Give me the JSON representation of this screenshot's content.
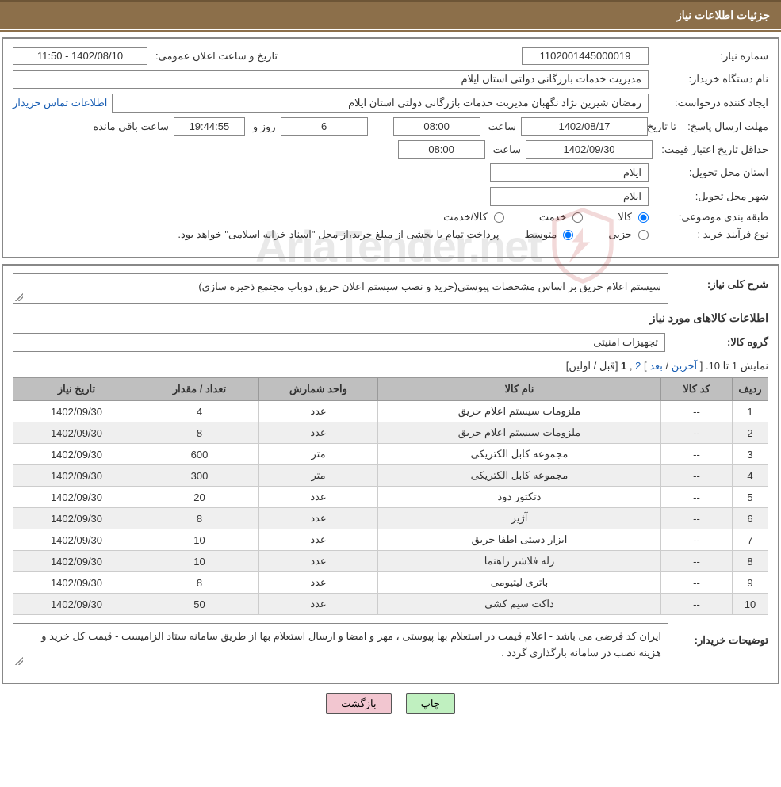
{
  "header": {
    "title": "جزئیات اطلاعات نیاز"
  },
  "fields": {
    "request_no_label": "شماره نیاز:",
    "request_no": "1102001445000019",
    "announce_label": "تاریخ و ساعت اعلان عمومی:",
    "announce_value": "1402/08/10 - 11:50",
    "buyer_org_label": "نام دستگاه خریدار:",
    "buyer_org": "مدیریت خدمات بازرگانی دولتی استان ایلام",
    "creator_label": "ایجاد کننده درخواست:",
    "creator": "رمضان شیرین نژاد نگهبان مدیریت خدمات بازرگانی دولتی استان ایلام",
    "contact_link": "اطلاعات تماس خریدار",
    "deadline_label": "مهلت ارسال پاسخ:",
    "until_label": "تا تاریخ:",
    "deadline_date": "1402/08/17",
    "time_label": "ساعت",
    "deadline_time": "08:00",
    "days_remaining": "6",
    "days_and_label": "روز و",
    "time_left": "19:44:55",
    "time_left_label": "ساعت باقي مانده",
    "validity_label": "حداقل تاریخ اعتبار قیمت:",
    "validity_date": "1402/09/30",
    "validity_time": "08:00",
    "province_label": "استان محل تحویل:",
    "province": "ايلام",
    "city_label": "شهر محل تحویل:",
    "city": "ايلام",
    "category_label": "طبقه بندی موضوعی:",
    "cat_goods": "کالا",
    "cat_service": "خدمت",
    "cat_goods_service": "کالا/خدمت",
    "process_label": "نوع فرآیند خرید :",
    "proc_partial": "جزیی",
    "proc_medium": "متوسط",
    "process_note": "پرداخت تمام یا بخشی از مبلغ خرید،از محل \"اسناد خزانه اسلامی\" خواهد بود."
  },
  "section2": {
    "overview_label": "شرح کلی نیاز:",
    "overview": "سیستم اعلام حریق بر اساس مشخصات پیوستی(خرید و نصب سیستم اعلان حریق دوباب مجتمع ذخیره سازی)",
    "items_title": "اطلاعات کالاهای مورد نیاز",
    "group_label": "گروه کالا:",
    "group_value": "تجهیزات امنیتی"
  },
  "pager": {
    "range": "نمایش 1 تا 10.",
    "first": "اولین",
    "prev": "قبل",
    "current": "1",
    "next": "2",
    "after": "بعد",
    "last": "آخرین"
  },
  "table": {
    "headers": {
      "row": "ردیف",
      "code": "کد کالا",
      "name": "نام کالا",
      "unit": "واحد شمارش",
      "qty": "تعداد / مقدار",
      "date": "تاریخ نیاز"
    },
    "rows": [
      {
        "row": "1",
        "code": "--",
        "name": "ملزومات سیستم اعلام حریق",
        "unit": "عدد",
        "qty": "4",
        "date": "1402/09/30"
      },
      {
        "row": "2",
        "code": "--",
        "name": "ملزومات سیستم اعلام حریق",
        "unit": "عدد",
        "qty": "8",
        "date": "1402/09/30"
      },
      {
        "row": "3",
        "code": "--",
        "name": "مجموعه کابل الکتریکی",
        "unit": "متر",
        "qty": "600",
        "date": "1402/09/30"
      },
      {
        "row": "4",
        "code": "--",
        "name": "مجموعه کابل الکتریکی",
        "unit": "متر",
        "qty": "300",
        "date": "1402/09/30"
      },
      {
        "row": "5",
        "code": "--",
        "name": "دتکتور دود",
        "unit": "عدد",
        "qty": "20",
        "date": "1402/09/30"
      },
      {
        "row": "6",
        "code": "--",
        "name": "آژیر",
        "unit": "عدد",
        "qty": "8",
        "date": "1402/09/30"
      },
      {
        "row": "7",
        "code": "--",
        "name": "ابزار دستی اطفا حریق",
        "unit": "عدد",
        "qty": "10",
        "date": "1402/09/30"
      },
      {
        "row": "8",
        "code": "--",
        "name": "رله فلاشر راهنما",
        "unit": "عدد",
        "qty": "10",
        "date": "1402/09/30"
      },
      {
        "row": "9",
        "code": "--",
        "name": "باتری لیتیومی",
        "unit": "عدد",
        "qty": "8",
        "date": "1402/09/30"
      },
      {
        "row": "10",
        "code": "--",
        "name": "داکت سیم کشی",
        "unit": "عدد",
        "qty": "50",
        "date": "1402/09/30"
      }
    ]
  },
  "buyer_notes_label": "توضیحات خریدار:",
  "buyer_notes": "ایران کد فرضی می باشد - اعلام قیمت در استعلام بها پیوستی ، مهر و امضا و ارسال استعلام بها از طریق سامانه ستاد الزامیست - قیمت کل خرید و هزینه نصب در سامانه بارگذاری گردد .",
  "footer": {
    "print": "چاپ",
    "back": "بازگشت"
  },
  "watermark": {
    "text": "AriaTender.net"
  },
  "colors": {
    "header_bg": "#8c6f4a",
    "header_border": "#6d5536",
    "panel_border": "#888888",
    "th_bg": "#bfbfbf",
    "row_alt": "#efefef",
    "link": "#1a5fb4",
    "btn_print": "#c0f0c0",
    "btn_back": "#f2c6d0"
  }
}
